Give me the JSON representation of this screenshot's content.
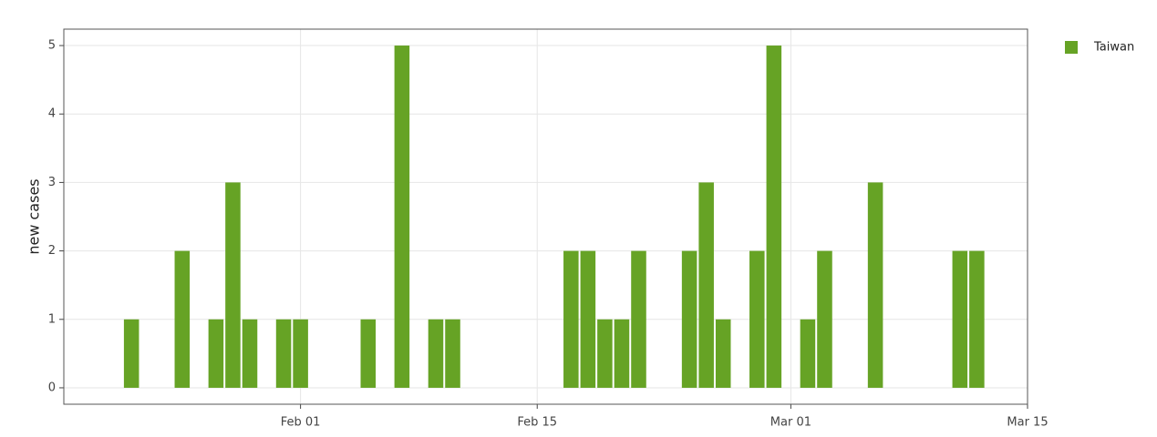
{
  "chart_data": {
    "type": "bar",
    "y_label": "new cases",
    "x": [
      "Jan 22",
      "Jan 25",
      "Jan 27",
      "Jan 28",
      "Jan 29",
      "Jan 31",
      "Feb 01",
      "Feb 05",
      "Feb 07",
      "Feb 09",
      "Feb 10",
      "Feb 17",
      "Feb 18",
      "Feb 19",
      "Feb 20",
      "Feb 21",
      "Feb 24",
      "Feb 25",
      "Feb 26",
      "Feb 28",
      "Feb 29",
      "Mar 02",
      "Mar 03",
      "Mar 06",
      "Mar 11",
      "Mar 12"
    ],
    "series": [
      {
        "name": "Taiwan",
        "color": "#66a325",
        "values": [
          1,
          2,
          1,
          3,
          1,
          1,
          1,
          1,
          5,
          1,
          1,
          2,
          2,
          1,
          1,
          2,
          2,
          3,
          1,
          2,
          5,
          1,
          2,
          3,
          2,
          2
        ]
      }
    ],
    "xlim": [
      "Jan 18",
      "Mar 15"
    ],
    "xticks": [
      "Feb 01",
      "Feb 15",
      "Mar 01",
      "Mar 15"
    ],
    "ylim": [
      -0.24,
      5.24
    ],
    "yticks": [
      0,
      1,
      2,
      3,
      4,
      5
    ],
    "grid": true,
    "legend": "top-right"
  }
}
